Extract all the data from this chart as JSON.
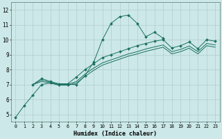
{
  "xlabel": "Humidex (Indice chaleur)",
  "ylabel": "",
  "bg_color": "#cce8e8",
  "grid_color": "#b0cccc",
  "line_color": "#1a7060",
  "xlim": [
    -0.5,
    23.5
  ],
  "ylim": [
    4.5,
    12.5
  ],
  "xticks": [
    0,
    1,
    2,
    3,
    4,
    5,
    6,
    7,
    8,
    9,
    10,
    11,
    12,
    13,
    14,
    15,
    16,
    17,
    18,
    19,
    20,
    21,
    22,
    23
  ],
  "yticks": [
    5,
    6,
    7,
    8,
    9,
    10,
    11,
    12
  ],
  "lines": [
    {
      "x": [
        0,
        1,
        2,
        3,
        4,
        5,
        6,
        7,
        8,
        9,
        10,
        11,
        12,
        13,
        14,
        15,
        16,
        17
      ],
      "y": [
        4.8,
        5.6,
        6.3,
        7.0,
        7.1,
        7.0,
        7.0,
        7.0,
        7.6,
        8.5,
        10.0,
        11.1,
        11.55,
        11.65,
        11.1,
        10.2,
        10.5,
        10.1
      ],
      "marker": true
    },
    {
      "x": [
        2,
        3,
        4,
        5,
        6,
        7,
        8,
        9,
        10,
        11,
        12,
        13,
        14,
        15,
        16,
        17,
        18,
        19,
        20,
        21,
        22,
        23
      ],
      "y": [
        7.0,
        7.4,
        7.2,
        7.05,
        7.05,
        7.5,
        8.0,
        8.4,
        8.8,
        9.0,
        9.2,
        9.4,
        9.6,
        9.75,
        9.9,
        10.0,
        9.45,
        9.6,
        9.85,
        9.4,
        10.0,
        9.9
      ],
      "marker": true
    },
    {
      "x": [
        2,
        3,
        4,
        5,
        6,
        7,
        8,
        9,
        10,
        11,
        12,
        13,
        14,
        15,
        16,
        17,
        18,
        19,
        20,
        21,
        22,
        23
      ],
      "y": [
        7.0,
        7.3,
        7.15,
        7.0,
        7.0,
        7.2,
        7.7,
        8.1,
        8.45,
        8.65,
        8.85,
        9.05,
        9.2,
        9.38,
        9.52,
        9.65,
        9.2,
        9.35,
        9.58,
        9.2,
        9.75,
        9.65
      ],
      "marker": false
    },
    {
      "x": [
        2,
        3,
        4,
        5,
        6,
        7,
        8,
        9,
        10,
        11,
        12,
        13,
        14,
        15,
        16,
        17,
        18,
        19,
        20,
        21,
        22,
        23
      ],
      "y": [
        7.0,
        7.2,
        7.1,
        6.95,
        6.95,
        7.1,
        7.55,
        7.95,
        8.3,
        8.5,
        8.7,
        8.9,
        9.05,
        9.22,
        9.36,
        9.5,
        9.05,
        9.2,
        9.43,
        9.05,
        9.6,
        9.5
      ],
      "marker": false
    }
  ]
}
